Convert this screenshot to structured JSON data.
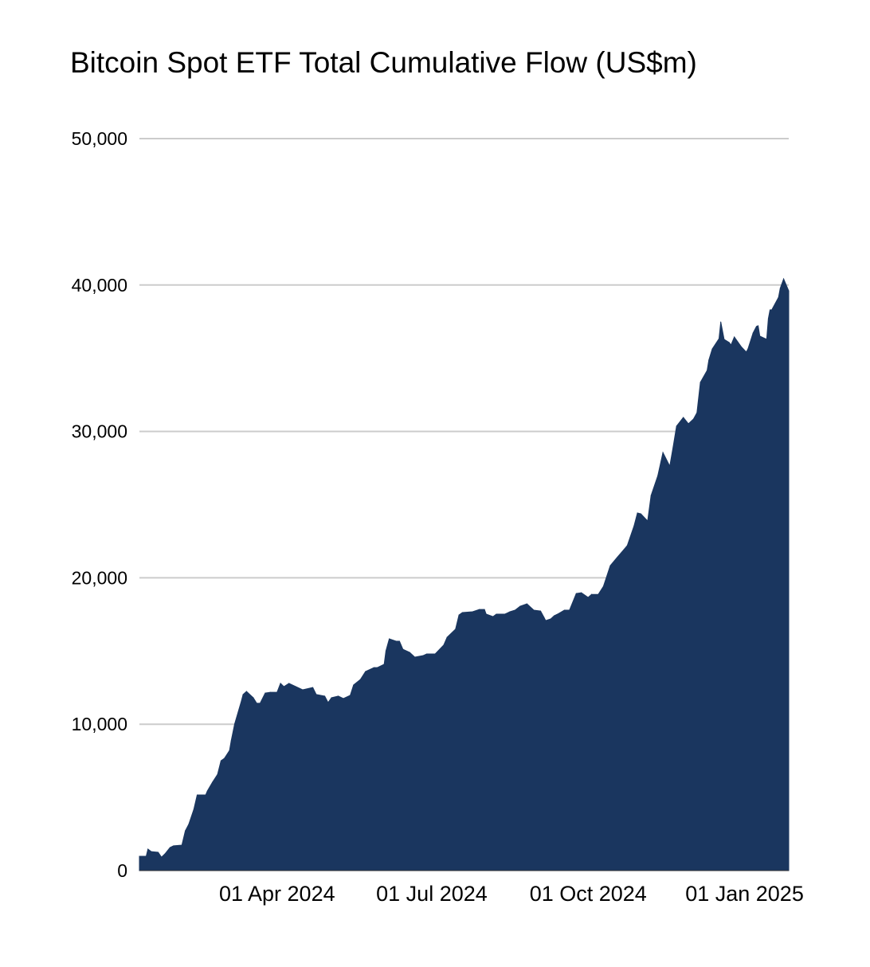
{
  "chart_data": {
    "type": "area",
    "title": "Bitcoin Spot ETF Total Cumulative Flow (US$m)",
    "xlabel": "",
    "ylabel": "",
    "ylim": [
      0,
      50000
    ],
    "xlim": [
      "2024-01-11",
      "2025-01-27"
    ],
    "grid": true,
    "legend": "none",
    "color": "#1a365f",
    "grid_color": "#cccccc",
    "y_ticks": [
      0,
      10000,
      20000,
      30000,
      40000,
      50000
    ],
    "y_tick_labels": [
      "0",
      "10,000",
      "20,000",
      "30,000",
      "40,000",
      "50,000"
    ],
    "x_ticks": [
      "2024-04-01",
      "2024-07-01",
      "2024-10-01",
      "2025-01-01"
    ],
    "x_tick_labels": [
      "01 Apr 2024",
      "01 Jul 2024",
      "01 Oct 2024",
      "01 Jan 2025"
    ],
    "series": [
      {
        "x": [
          "2024-01-11",
          "2024-01-15",
          "2024-01-16",
          "2024-01-18",
          "2024-01-22",
          "2024-01-24",
          "2024-01-26",
          "2024-01-29",
          "2024-01-31",
          "2024-02-05",
          "2024-02-07",
          "2024-02-09",
          "2024-02-12",
          "2024-02-14",
          "2024-02-19",
          "2024-02-20",
          "2024-02-23",
          "2024-02-26",
          "2024-02-28",
          "2024-03-01",
          "2024-03-04",
          "2024-03-05",
          "2024-03-07",
          "2024-03-11",
          "2024-03-12",
          "2024-03-14",
          "2024-03-18",
          "2024-03-20",
          "2024-03-22",
          "2024-03-25",
          "2024-03-28",
          "2024-04-01",
          "2024-04-03",
          "2024-04-05",
          "2024-04-08",
          "2024-04-12",
          "2024-04-16",
          "2024-04-22",
          "2024-04-24",
          "2024-04-29",
          "2024-05-01",
          "2024-05-03",
          "2024-05-07",
          "2024-05-10",
          "2024-05-14",
          "2024-05-16",
          "2024-05-20",
          "2024-05-23",
          "2024-05-28",
          "2024-05-30",
          "2024-06-03",
          "2024-06-04",
          "2024-06-06",
          "2024-06-10",
          "2024-06-12",
          "2024-06-14",
          "2024-06-18",
          "2024-06-21",
          "2024-06-26",
          "2024-06-28",
          "2024-07-03",
          "2024-07-08",
          "2024-07-10",
          "2024-07-15",
          "2024-07-17",
          "2024-07-19",
          "2024-07-25",
          "2024-07-29",
          "2024-08-01",
          "2024-08-02",
          "2024-08-06",
          "2024-08-08",
          "2024-08-13",
          "2024-08-16",
          "2024-08-19",
          "2024-08-22",
          "2024-08-26",
          "2024-08-30",
          "2024-09-03",
          "2024-09-05",
          "2024-09-06",
          "2024-09-09",
          "2024-09-11",
          "2024-09-13",
          "2024-09-17",
          "2024-09-20",
          "2024-09-24",
          "2024-09-27",
          "2024-10-01",
          "2024-10-03",
          "2024-10-07",
          "2024-10-10",
          "2024-10-14",
          "2024-10-18",
          "2024-10-22",
          "2024-10-24",
          "2024-10-28",
          "2024-10-30",
          "2024-11-01",
          "2024-11-05",
          "2024-11-07",
          "2024-11-11",
          "2024-11-14",
          "2024-11-18",
          "2024-11-20",
          "2024-11-22",
          "2024-11-26",
          "2024-11-29",
          "2024-12-02",
          "2024-12-04",
          "2024-12-06",
          "2024-12-10",
          "2024-12-11",
          "2024-12-13",
          "2024-12-17",
          "2024-12-18",
          "2024-12-20",
          "2024-12-23",
          "2024-12-24",
          "2024-12-26",
          "2024-12-30",
          "2025-01-02",
          "2025-01-03",
          "2025-01-06",
          "2025-01-08",
          "2025-01-09",
          "2025-01-10",
          "2025-01-14",
          "2025-01-15",
          "2025-01-16",
          "2025-01-17",
          "2025-01-21",
          "2025-01-22",
          "2025-01-24",
          "2025-01-27"
        ],
        "values": [
          980,
          980,
          1470,
          1300,
          1250,
          920,
          1140,
          1580,
          1690,
          1740,
          2720,
          3160,
          4190,
          5170,
          5170,
          5440,
          6040,
          6580,
          7510,
          7670,
          8210,
          8870,
          10010,
          11590,
          12030,
          12240,
          11810,
          11430,
          11430,
          12130,
          12180,
          12180,
          12790,
          12570,
          12790,
          12570,
          12350,
          12510,
          12030,
          11920,
          11480,
          11810,
          11920,
          11750,
          11970,
          12680,
          13060,
          13600,
          13870,
          13870,
          14090,
          15010,
          15830,
          15670,
          15670,
          15120,
          14910,
          14580,
          14690,
          14800,
          14800,
          15400,
          15940,
          16490,
          17460,
          17630,
          17680,
          17840,
          17840,
          17520,
          17350,
          17520,
          17520,
          17680,
          17790,
          18060,
          18220,
          17790,
          17730,
          17300,
          17080,
          17190,
          17410,
          17520,
          17790,
          17790,
          18930,
          18980,
          18660,
          18870,
          18870,
          19420,
          20830,
          21380,
          21920,
          22200,
          23560,
          24430,
          24370,
          23880,
          25620,
          26980,
          28560,
          27630,
          28940,
          30360,
          30960,
          30520,
          30850,
          31280,
          33350,
          34170,
          34870,
          35630,
          36340,
          37480,
          36290,
          36070,
          35900,
          36450,
          35790,
          35420,
          35630,
          36720,
          37170,
          37220,
          36510,
          36290,
          37700,
          38300,
          38300,
          39160,
          39770,
          40420,
          39600
        ]
      }
    ]
  }
}
